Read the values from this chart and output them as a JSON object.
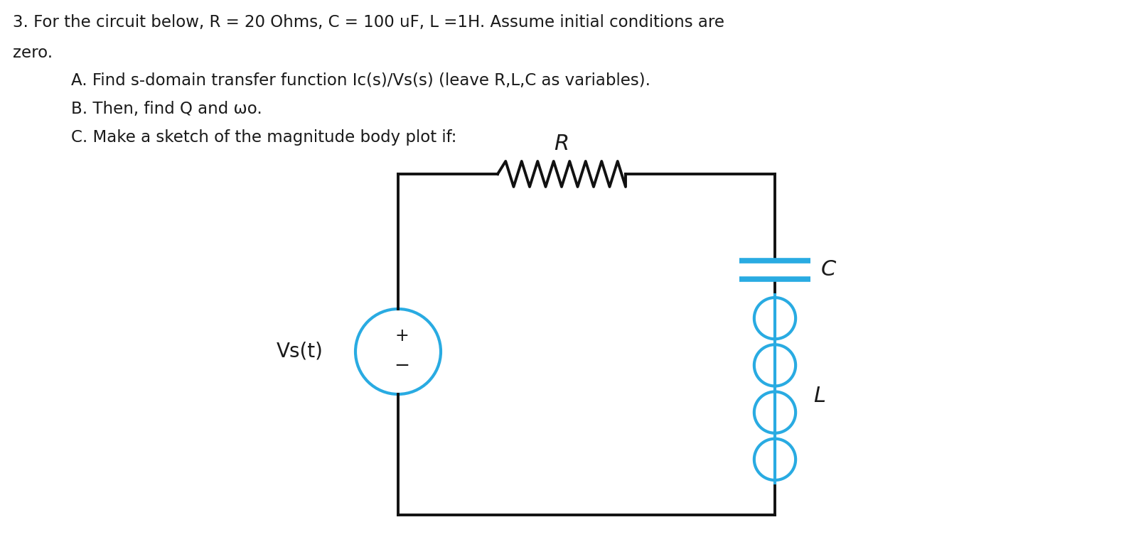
{
  "title_line1": "3. For the circuit below, R = 20 Ohms, C = 100 uF, L =1H. Assume initial conditions are",
  "title_line2": "zero.",
  "item_a": "A. Find s-domain transfer function Ic(s)/Vs(s) (leave R,L,C as variables).",
  "item_b": "B. Then, find Q and ωo.",
  "item_c": "C. Make a sketch of the magnitude body plot if:",
  "bg_color": "#ffffff",
  "text_color": "#1a1a1a",
  "circuit_color": "#111111",
  "component_color": "#29abe2",
  "label_R": "R",
  "label_C": "C",
  "label_L": "L",
  "label_Vs": "Vs(t)",
  "text_fontsize": 16.5,
  "label_fontsize": 20
}
